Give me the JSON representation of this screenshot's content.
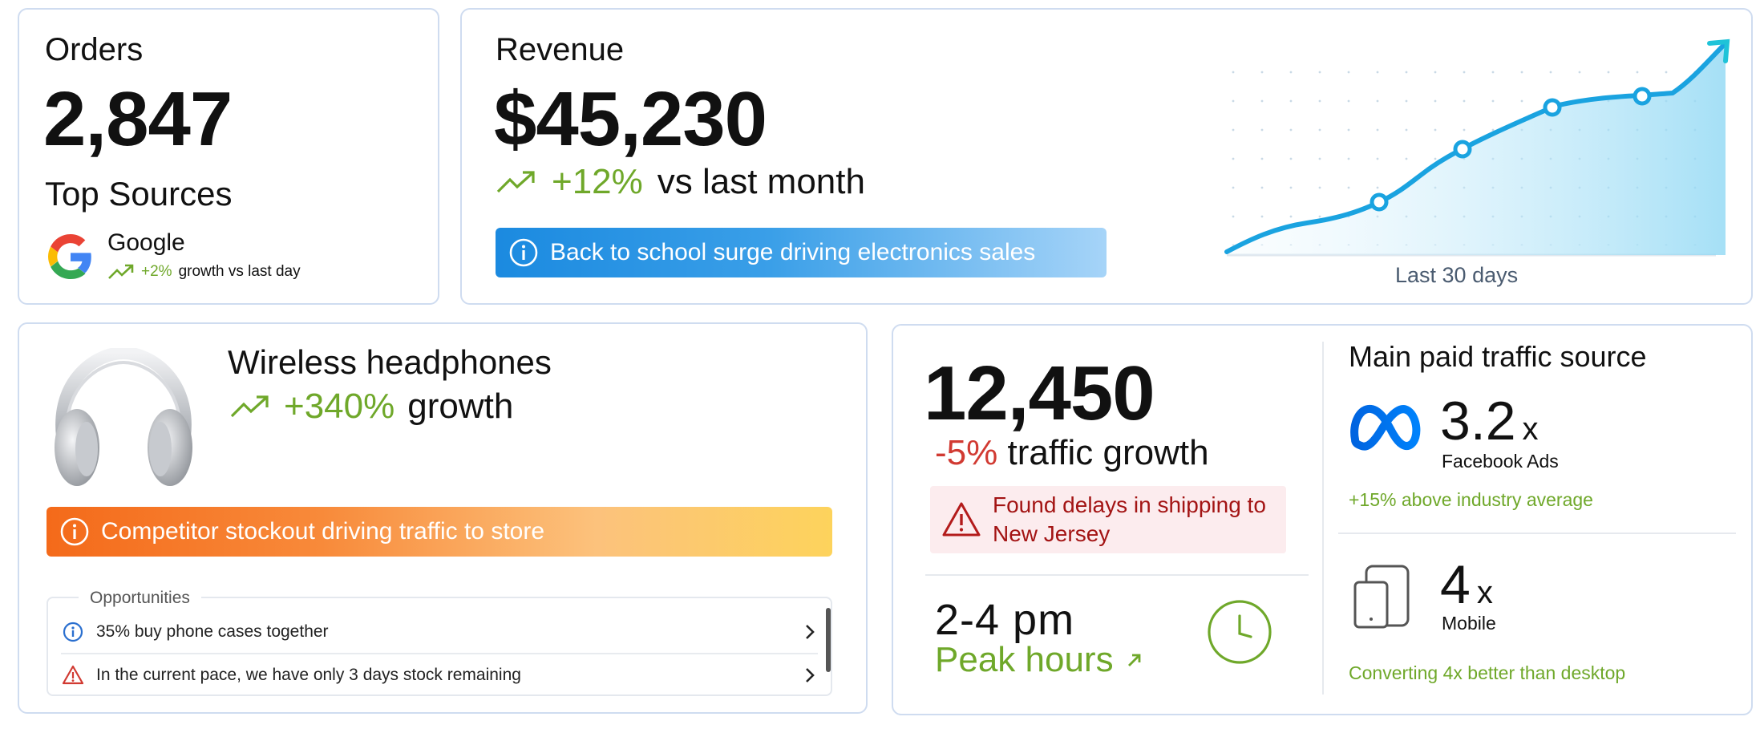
{
  "orders": {
    "title": "Orders",
    "value": "2,847",
    "top_sources_title": "Top Sources",
    "source": {
      "name": "Google",
      "change": "+2%",
      "change_text": "growth vs last day"
    }
  },
  "revenue": {
    "title": "Revenue",
    "value": "$45,230",
    "change": "+12%",
    "change_text": "vs last month",
    "banner": "Back to school surge driving electronics sales",
    "chart_caption": "Last 30 days"
  },
  "product": {
    "name": "Wireless headphones",
    "change": "+340%",
    "change_text": "growth",
    "banner": "Competitor stockout driving traffic to store",
    "opportunities_title": "Opportunities",
    "opportunities": [
      {
        "icon": "info-icon",
        "text": "35% buy phone cases together"
      },
      {
        "icon": "warning-icon",
        "text": "In the current pace, we have only 3 days stock remaining"
      }
    ]
  },
  "traffic": {
    "value": "12,450",
    "change": "-5%",
    "change_text": "traffic growth",
    "alert": "Found delays in  shipping to New Jersey",
    "peak_time": "2-4 pm",
    "peak_label": "Peak hours",
    "main_source_title": "Main paid traffic source",
    "facebook": {
      "multiplier": "3.2",
      "unit": "x",
      "label": "Facebook Ads",
      "note": "+15% above industry average"
    },
    "mobile": {
      "multiplier": "4",
      "unit": "x",
      "label": "Mobile",
      "note": "Converting 4x better than desktop"
    }
  },
  "colors": {
    "positive": "#6fa82a",
    "negative": "#d13a32",
    "info_banner": "#1b8ae0",
    "warning_banner": "#f46a1a",
    "chart_line": "#1aa3e0"
  }
}
